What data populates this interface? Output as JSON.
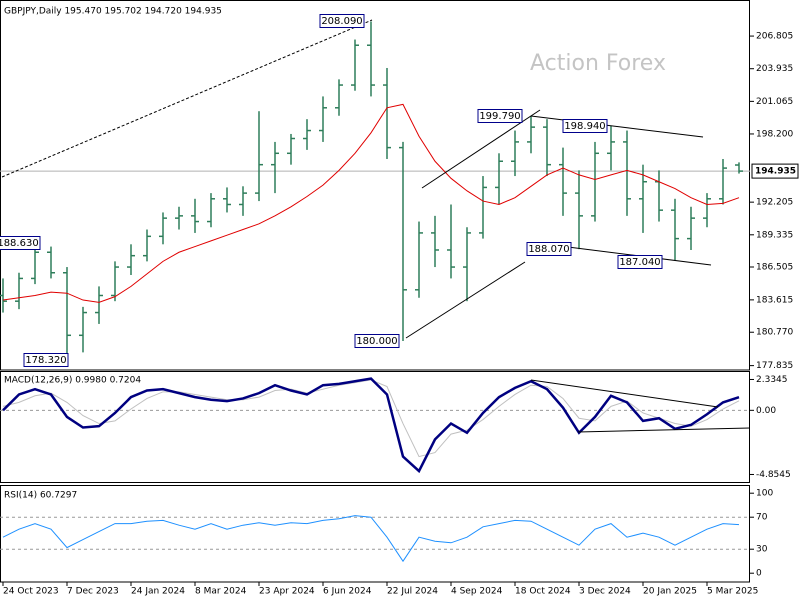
{
  "chart_data": [
    {
      "type": "ohlc",
      "title": "GBPJPY,Daily  195.470 195.702 194.720 194.935",
      "watermark": "Action Forex",
      "categories": [
        "24 Oct 2023",
        null,
        null,
        null,
        "7 Dec 2023",
        null,
        null,
        null,
        "24 Jan 2024",
        null,
        null,
        null,
        "8 Mar 2024",
        null,
        null,
        null,
        "23 Apr 2024",
        null,
        null,
        null,
        "6 Jun 2024",
        null,
        null,
        null,
        "22 Jul 2024",
        null,
        null,
        null,
        "4 Sep 2024",
        null,
        null,
        null,
        "18 Oct 2024",
        null,
        null,
        null,
        "3 Dec 2024",
        null,
        null,
        null,
        "20 Jan 2025",
        null,
        null,
        null,
        "5 Mar 2025",
        null,
        null
      ],
      "open": [
        184,
        183.5,
        185.5,
        187.8,
        186,
        180.5,
        182.5,
        184,
        186.5,
        187.5,
        189.2,
        190.8,
        191,
        190.5,
        192.5,
        192,
        193,
        195.5,
        196.5,
        197.8,
        198.5,
        200.5,
        202.5,
        206,
        202.5,
        197,
        184.5,
        189.5,
        188,
        186.5,
        189.5,
        193.5,
        195.8,
        197.5,
        198.8,
        195.5,
        193,
        191,
        196.5,
        197.5,
        192.5,
        194,
        191.5,
        189,
        190.8,
        192.5,
        195.47
      ],
      "high": [
        185.5,
        186,
        188.63,
        188.3,
        186.5,
        183,
        184.8,
        187,
        188.5,
        189.8,
        191.3,
        191.8,
        192.5,
        193,
        193.5,
        193.6,
        200.2,
        197.5,
        198.2,
        199.5,
        201.5,
        203,
        206.5,
        208.09,
        204,
        197.5,
        190.5,
        191,
        192,
        190,
        194.5,
        196.5,
        198.5,
        199.79,
        199.5,
        197,
        195,
        197.5,
        198.94,
        198.5,
        195.5,
        195,
        192.5,
        191.8,
        193,
        196,
        195.702
      ],
      "low": [
        182.5,
        182.8,
        185,
        185.5,
        178.32,
        179,
        181.5,
        183.5,
        185.8,
        187,
        188.5,
        189.8,
        189.5,
        190,
        191.3,
        191,
        192.3,
        193,
        195.5,
        196.8,
        197.5,
        199.8,
        202,
        201.5,
        196,
        180.0,
        183.8,
        186.5,
        185.5,
        183.5,
        189,
        192,
        194.5,
        196.5,
        194.5,
        191,
        188.07,
        190.5,
        195,
        191,
        189.5,
        190.5,
        187.04,
        188,
        190,
        192,
        194.72
      ],
      "close": [
        183.5,
        185.5,
        187.8,
        186,
        180.5,
        182.5,
        184,
        186.5,
        187.5,
        189.2,
        190.8,
        191,
        190.5,
        192.5,
        192,
        193,
        195.5,
        196.5,
        197.8,
        198.5,
        200.5,
        202.5,
        206,
        202.5,
        197,
        184.5,
        189.5,
        188,
        186.5,
        189.5,
        193.5,
        195.8,
        197.5,
        198.8,
        195.5,
        193,
        191,
        196.5,
        197.5,
        192.5,
        194,
        191.5,
        189,
        190.8,
        192.5,
        195.2,
        194.935
      ],
      "color": "#2e7d5a",
      "moving_average": {
        "color": "#e00000",
        "values": [
          183.6,
          183.8,
          184.0,
          184.3,
          184.2,
          183.6,
          183.4,
          183.9,
          184.8,
          185.9,
          187.0,
          187.8,
          188.3,
          188.8,
          189.3,
          189.8,
          190.3,
          191.0,
          191.8,
          192.7,
          193.7,
          195.0,
          196.5,
          198.3,
          200.5,
          200.8,
          198.0,
          195.8,
          194.3,
          193.2,
          192.3,
          192.0,
          192.6,
          193.6,
          194.6,
          195.2,
          194.6,
          194.2,
          194.6,
          195.0,
          194.6,
          194.0,
          193.4,
          192.6,
          192.0,
          192.1,
          192.6
        ]
      },
      "ylim": [
        177.45,
        209.8
      ],
      "yticks": [
        {
          "value": 206.805,
          "label": "206.805"
        },
        {
          "value": 203.935,
          "label": "203.935"
        },
        {
          "value": 201.065,
          "label": "201.065"
        },
        {
          "value": 198.2,
          "label": "198.200"
        },
        {
          "value": 192.205,
          "label": "192.205"
        },
        {
          "value": 189.335,
          "label": "189.335"
        },
        {
          "value": 186.505,
          "label": "186.505"
        },
        {
          "value": 183.615,
          "label": "183.615"
        },
        {
          "value": 180.77,
          "label": "180.770"
        },
        {
          "value": 177.835,
          "label": "177.835"
        }
      ],
      "last_price": 194.935,
      "annotations": [
        "208.090",
        "199.790",
        "198.940",
        "188.630",
        "188.070",
        "187.040",
        "178.320",
        "180.000"
      ]
    },
    {
      "type": "line",
      "title": "MACD(12,26,9) 0.9980 0.7204",
      "series": [
        {
          "color": "#c0c0c0",
          "values": [
            0.3,
            0.6,
            1.1,
            1.3,
            0.6,
            -0.4,
            -1.0,
            -0.8,
            0.1,
            0.9,
            1.4,
            1.4,
            1.2,
            1.0,
            0.8,
            0.8,
            1.0,
            1.5,
            1.6,
            1.3,
            1.6,
            1.9,
            2.1,
            2.3,
            1.8,
            -1.0,
            -3.5,
            -3.2,
            -1.8,
            -1.5,
            -0.7,
            0.3,
            1.2,
            1.9,
            1.8,
            0.9,
            -0.6,
            -0.8,
            0.3,
            0.7,
            -0.2,
            -0.6,
            -1.0,
            -1.2,
            -0.7,
            0.1,
            0.7204
          ]
        },
        {
          "color": "#000080",
          "values": [
            0.0,
            1.2,
            1.6,
            1.2,
            -0.5,
            -1.3,
            -1.2,
            -0.2,
            1.0,
            1.5,
            1.6,
            1.3,
            1.0,
            0.8,
            0.7,
            0.9,
            1.3,
            1.9,
            1.5,
            1.2,
            1.9,
            2.0,
            2.2,
            2.4,
            1.2,
            -3.5,
            -4.6,
            -2.2,
            -1.0,
            -1.7,
            -0.2,
            1.0,
            1.7,
            2.2,
            1.6,
            0.2,
            -1.7,
            -0.5,
            1.1,
            0.6,
            -0.8,
            -0.6,
            -1.4,
            -1.1,
            -0.3,
            0.6,
            0.998
          ]
        }
      ],
      "ylim": [
        -5.5,
        2.9
      ],
      "yticks": [
        2.3345,
        {
          "value": 0,
          "label": "0.00"
        },
        -4.8545
      ],
      "levels": [
        0
      ]
    },
    {
      "type": "line",
      "title": "RSI(14) 60.7297",
      "series": [
        {
          "color": "#1e90ff",
          "values": [
            45,
            55,
            62,
            55,
            32,
            42,
            52,
            62,
            62,
            65,
            66,
            60,
            55,
            62,
            55,
            60,
            63,
            60,
            63,
            62,
            66,
            68,
            72,
            70,
            45,
            15,
            45,
            40,
            38,
            45,
            58,
            62,
            66,
            65,
            55,
            45,
            35,
            55,
            62,
            45,
            50,
            45,
            35,
            45,
            55,
            62,
            60.7297
          ]
        }
      ],
      "ylim": [
        -11,
        109
      ],
      "yticks": [
        100,
        70,
        30,
        0
      ],
      "levels": [
        70,
        30
      ]
    }
  ]
}
